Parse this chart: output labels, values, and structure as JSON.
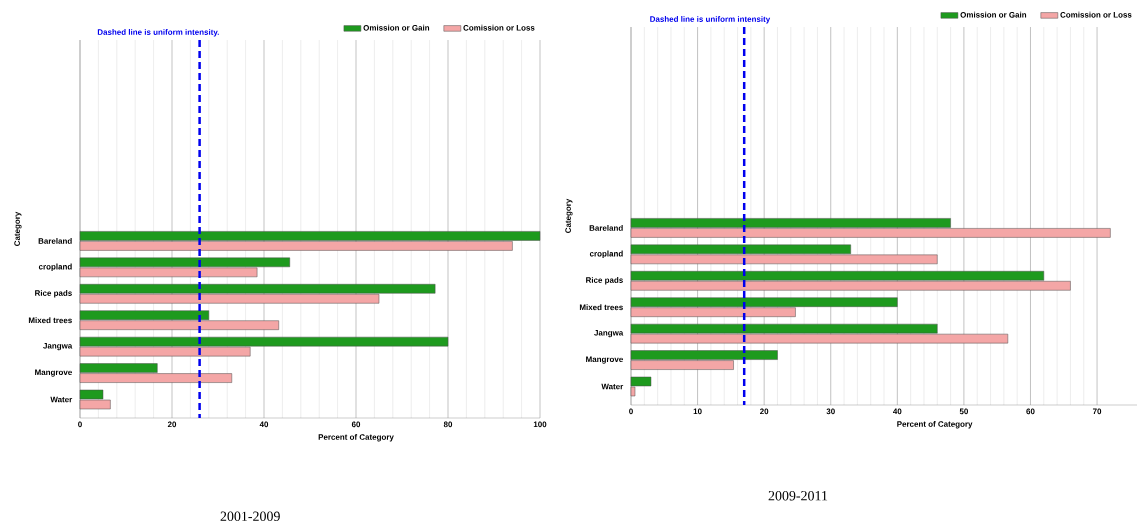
{
  "chart_data": [
    {
      "type": "bar",
      "orientation": "horizontal",
      "ylabel": "Category",
      "xlabel": "Percent of Category",
      "categories": [
        "Bareland",
        "cropland",
        "Rice pads",
        "Mixed trees",
        "Jangwa",
        "Mangrove",
        "Water"
      ],
      "series": [
        {
          "name": "Omission or Gain",
          "color": "#1e9a1e",
          "values": [
            100,
            45.6,
            77.2,
            28,
            80,
            16.8,
            5
          ]
        },
        {
          "name": "Comission or Loss",
          "color": "#f4a6a6",
          "values": [
            94,
            38.5,
            65,
            43.2,
            37,
            33,
            6.6
          ]
        }
      ],
      "xlim": [
        0,
        100
      ],
      "xticks": [
        0,
        20,
        40,
        60,
        80,
        100
      ],
      "grid": "x",
      "legend": "top right",
      "ref_lines": [
        {
          "axis": "x",
          "value": 26,
          "label": "Dashed line is uniform intensity.",
          "color": "#0000ee",
          "line_style": "dashed"
        }
      ],
      "annotations": [
        "2001-2009"
      ]
    },
    {
      "type": "bar",
      "orientation": "horizontal",
      "ylabel": "Category",
      "xlabel": "Percent of Category",
      "categories": [
        "Bareland",
        "cropland",
        "Rice pads",
        "Mixed trees",
        "Jangwa",
        "Mangrove",
        "Water"
      ],
      "series": [
        {
          "name": "Omission or Gain",
          "color": "#1e9a1e",
          "values": [
            48,
            33,
            62,
            40,
            46,
            22,
            3
          ]
        },
        {
          "name": "Comission or Loss",
          "color": "#f4a6a6",
          "values": [
            72,
            46,
            66,
            24.7,
            56.6,
            15.4,
            0.6
          ]
        }
      ],
      "xlim": [
        0,
        76
      ],
      "xticks": [
        0,
        10,
        20,
        30,
        40,
        50,
        60,
        70
      ],
      "grid": "x",
      "legend": "top right",
      "ref_lines": [
        {
          "axis": "x",
          "value": 17,
          "label": "Dashed line is uniform intensity",
          "color": "#0000ee",
          "line_style": "dashed"
        }
      ],
      "annotations": [
        "2009-2011"
      ]
    }
  ]
}
